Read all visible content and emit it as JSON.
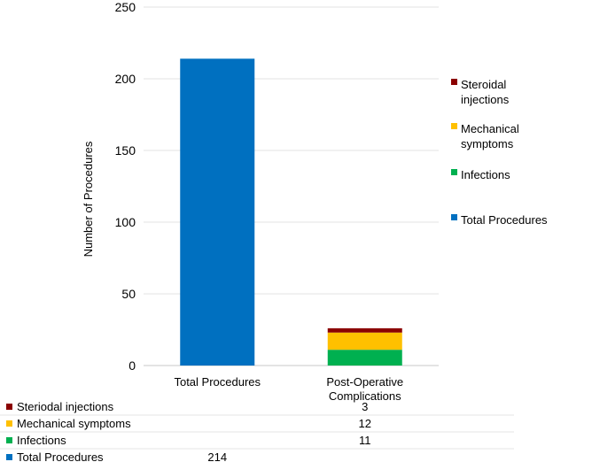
{
  "chart_data": {
    "type": "bar",
    "stacked": true,
    "ylabel": "Number of Procedures",
    "ylim": [
      0,
      250
    ],
    "yticks": [
      0,
      50,
      100,
      150,
      200,
      250
    ],
    "grid": true,
    "legend_position": "right",
    "categories": [
      "Total Procedures",
      "Post-Operative Complications"
    ],
    "series": [
      {
        "name": "Total Procedures",
        "color": "#0070C0",
        "values": [
          214,
          null
        ]
      },
      {
        "name": "Infections",
        "color": "#00B050",
        "values": [
          null,
          11
        ]
      },
      {
        "name": "Mechanical symptoms",
        "color": "#FFC000",
        "values": [
          null,
          12
        ]
      },
      {
        "name": "Steroidal injections",
        "color": "#8B0000",
        "values": [
          null,
          3
        ]
      }
    ],
    "legend_order": [
      "Steroidal injections",
      "Mechanical symptoms",
      "Infections",
      "Total Procedures"
    ],
    "legend_labels": {
      "Steroidal injections": [
        "Steroidal",
        "injections"
      ],
      "Mechanical symptoms": [
        "Mechanical",
        "symptoms"
      ],
      "Infections": [
        "Infections"
      ],
      "Total Procedures": [
        "Total Procedures"
      ]
    },
    "category_labels": [
      [
        "Total Procedures"
      ],
      [
        "Post-Operative",
        "Complications"
      ]
    ],
    "data_table": {
      "rows": [
        {
          "label": "Steriodal injections",
          "color": "#8B0000",
          "values": [
            "",
            "3"
          ]
        },
        {
          "label": "Mechanical symptoms",
          "color": "#FFC000",
          "values": [
            "",
            "12"
          ]
        },
        {
          "label": "Infections",
          "color": "#00B050",
          "values": [
            "",
            "11"
          ]
        },
        {
          "label": "Total Procedures",
          "color": "#0070C0",
          "values": [
            "214",
            ""
          ]
        }
      ]
    }
  }
}
